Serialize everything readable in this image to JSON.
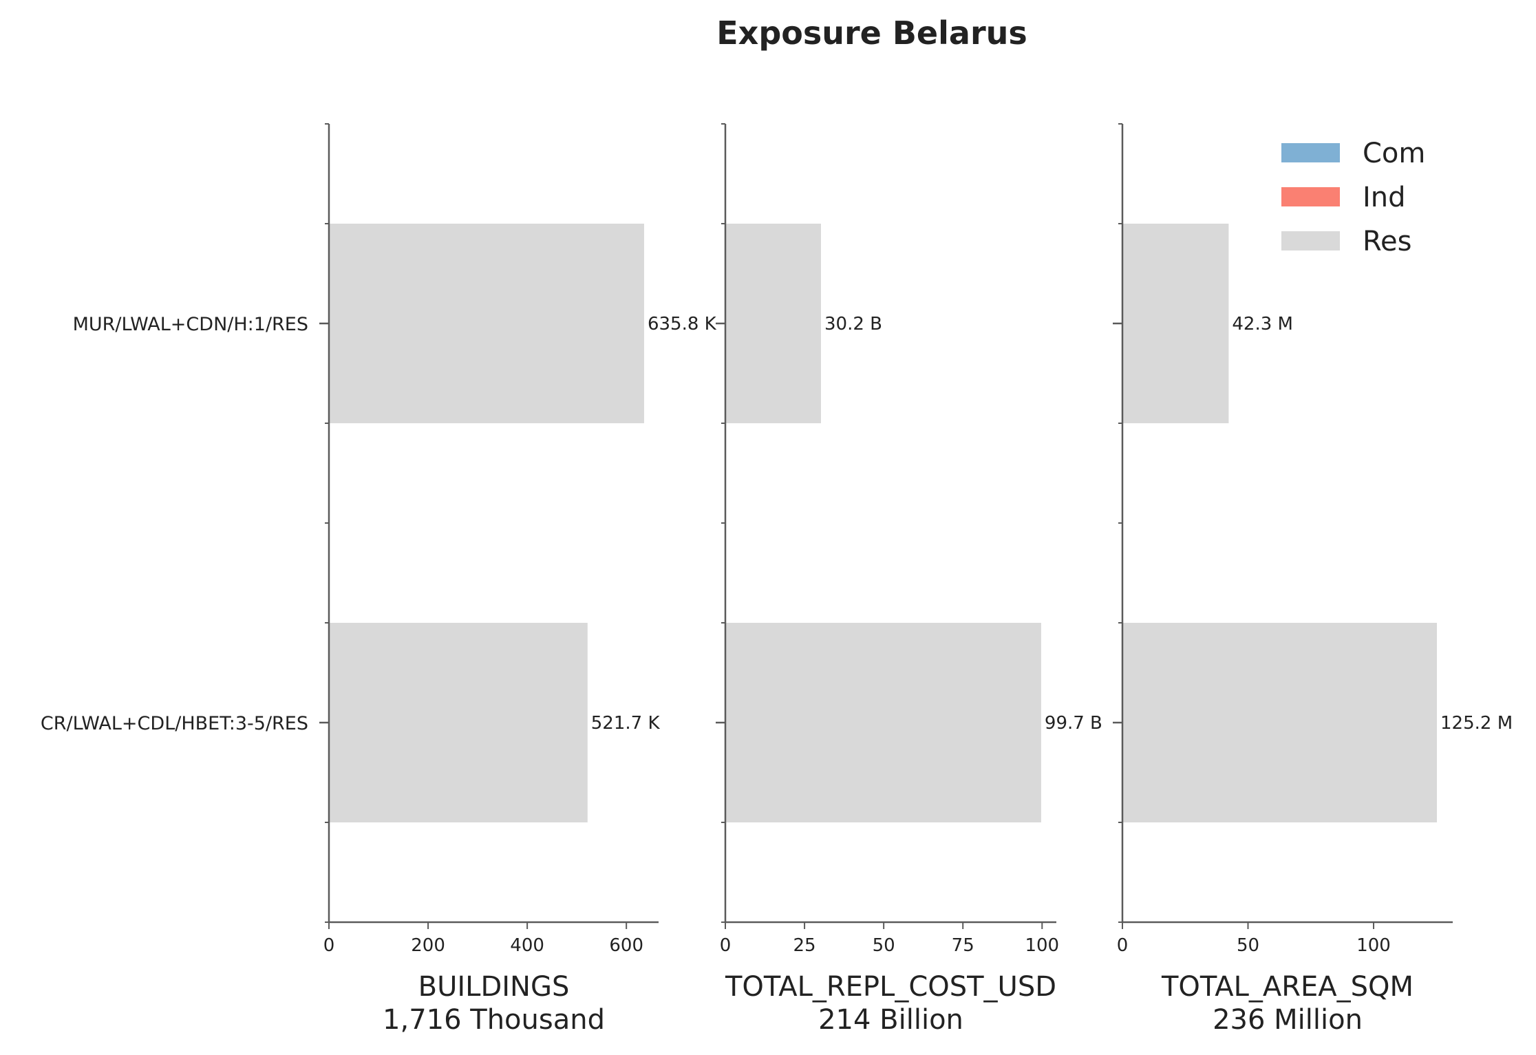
{
  "chart_data": {
    "type": "bar",
    "orientation": "horizontal",
    "title": "Exposure Belarus",
    "categories": [
      "MUR/LWAL+CDN/H:1/RES",
      "CR/LWAL+CDL/HBET:3-5/RES"
    ],
    "legend": {
      "placement": "top-right",
      "entries": [
        {
          "name": "Com",
          "color": "#7fb0d4"
        },
        {
          "name": "Ind",
          "color": "#fa8072"
        },
        {
          "name": "Res",
          "color": "#d9d9d9"
        }
      ]
    },
    "bar_color": "#d9d9d9",
    "grid": false,
    "panels": [
      {
        "id": "buildings",
        "xlabel": "BUILDINGS",
        "subtitle": "1,716 Thousand",
        "xlim": [
          0,
          665
        ],
        "ticks": [
          0,
          200,
          400,
          600
        ],
        "tick_labels": [
          "0",
          "200",
          "400",
          "600"
        ],
        "series": [
          {
            "name": "Res",
            "values": [
              635.8,
              521.7
            ]
          }
        ],
        "value_labels": [
          "635.8 K",
          "521.7 K"
        ]
      },
      {
        "id": "repl-cost",
        "xlabel": "TOTAL_REPL_COST_USD",
        "subtitle": "214 Billion",
        "xlim": [
          0,
          104.5
        ],
        "ticks": [
          0,
          25,
          50,
          75,
          100
        ],
        "tick_labels": [
          "0",
          "25",
          "50",
          "75",
          "100"
        ],
        "series": [
          {
            "name": "Res",
            "values": [
              30.2,
              99.7
            ]
          }
        ],
        "value_labels": [
          "30.2 B",
          "99.7 B"
        ]
      },
      {
        "id": "area",
        "xlabel": "TOTAL_AREA_SQM",
        "subtitle": "236 Million",
        "xlim": [
          0,
          131.5
        ],
        "ticks": [
          0,
          50,
          100
        ],
        "tick_labels": [
          "0",
          "50",
          "100"
        ],
        "series": [
          {
            "name": "Res",
            "values": [
              42.3,
              125.2
            ]
          }
        ],
        "value_labels": [
          "42.3 M",
          "125.2 M"
        ]
      }
    ]
  }
}
